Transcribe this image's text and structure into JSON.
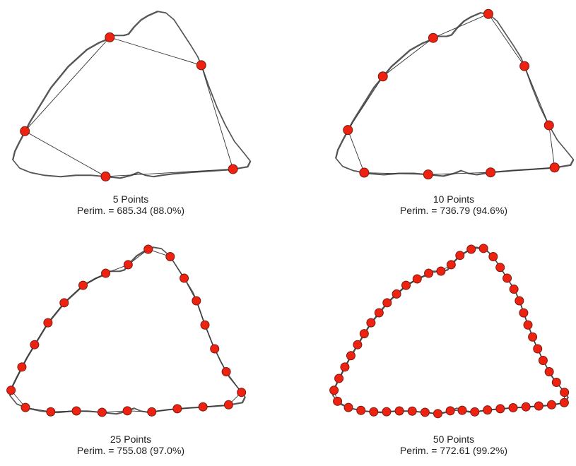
{
  "colors": {
    "shape_outline": "#555555",
    "polygon_line": "#333333",
    "point_fill": "#ee2211",
    "point_stroke": "#7a1a10",
    "text": "#222222"
  },
  "panels": [
    {
      "points_label": "5 Points",
      "perimeter_label": "Perim. = 685.34 (88.0%)",
      "point_count": 5
    },
    {
      "points_label": "10 Points",
      "perimeter_label": "Perim. = 736.79 (94.6%)",
      "point_count": 10
    },
    {
      "points_label": "25 Points",
      "perimeter_label": "Perim. = 755.08 (97.0%)",
      "point_count": 25
    },
    {
      "points_label": "50 Points",
      "perimeter_label": "Perim. = 772.61 (99.2%)",
      "point_count": 50
    }
  ]
}
